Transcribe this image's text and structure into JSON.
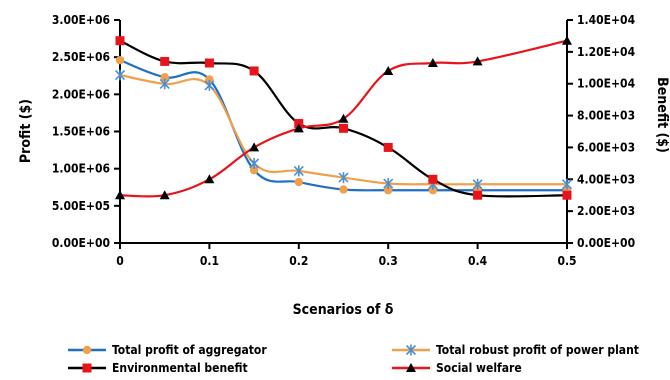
{
  "chart_data": {
    "type": "line",
    "xlabel": "Scenarios of δ",
    "ylabel_left": "Profit ($)",
    "ylabel_right": "Benefit ($)",
    "x": [
      0,
      0.05,
      0.1,
      0.15,
      0.2,
      0.25,
      0.3,
      0.35,
      0.4,
      0.5
    ],
    "x_ticks": [
      0,
      0.1,
      0.2,
      0.3,
      0.4,
      0.5
    ],
    "x_tick_labels": [
      "0",
      "0.1",
      "0.2",
      "0.3",
      "0.4",
      "0.5"
    ],
    "ylim_left": [
      0,
      3000000
    ],
    "y_ticks_left": [
      0,
      500000,
      1000000,
      1500000,
      2000000,
      2500000,
      3000000
    ],
    "y_tick_labels_left": [
      "0.00E+00",
      "5.00E+05",
      "1.00E+06",
      "1.50E+06",
      "2.00E+06",
      "2.50E+06",
      "3.00E+06"
    ],
    "ylim_right": [
      0,
      14000
    ],
    "y_ticks_right": [
      0,
      2000,
      4000,
      6000,
      8000,
      10000,
      12000,
      14000
    ],
    "y_tick_labels_right": [
      "0.00E+00",
      "2.00E+03",
      "4.00E+03",
      "6.00E+03",
      "8.00E+03",
      "1.00E+04",
      "1.20E+04",
      "1.40E+04"
    ],
    "grid": false,
    "legend_position": "bottom",
    "series": [
      {
        "name": "Total profit of aggregator",
        "axis": "left",
        "marker": "circle",
        "line_color": "#1f6fc4",
        "marker_color": "#f0a04b",
        "values": [
          2460000,
          2230000,
          2200000,
          980000,
          820000,
          720000,
          710000,
          710000,
          710000,
          710000
        ]
      },
      {
        "name": "Total robust profit of power plant",
        "axis": "left",
        "marker": "star",
        "line_color": "#f0a04b",
        "marker_color": "#4a8fd6",
        "values": [
          2260000,
          2140000,
          2120000,
          1070000,
          970000,
          880000,
          800000,
          790000,
          790000,
          790000
        ]
      },
      {
        "name": "Environmental benefit",
        "axis": "right",
        "marker": "square",
        "line_color": "#000000",
        "marker_color": "#e8141b",
        "values": [
          12700,
          11400,
          11300,
          10800,
          7500,
          7200,
          6000,
          4000,
          3000,
          3000
        ]
      },
      {
        "name": "Social welfare",
        "axis": "right",
        "marker": "triangle",
        "line_color": "#e8141b",
        "marker_color": "#000000",
        "values": [
          3000,
          3000,
          4000,
          6000,
          7200,
          7800,
          10800,
          11300,
          11400,
          12700
        ]
      }
    ]
  }
}
